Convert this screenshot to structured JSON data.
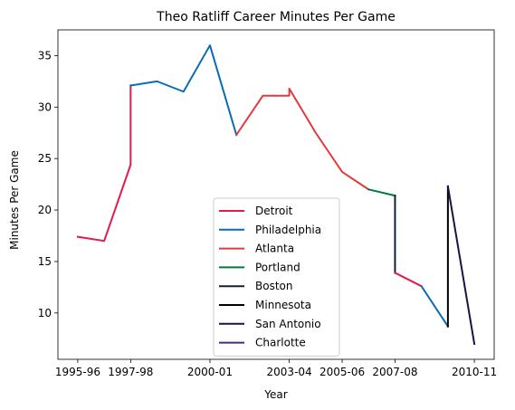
{
  "chart_data": {
    "type": "line",
    "title": "Theo Ratliff Career Minutes Per Game",
    "xlabel": "Year",
    "ylabel": "Minutes Per Game",
    "x_tick_labels": [
      "1995-96",
      "1997-98",
      "2000-01",
      "2003-04",
      "2005-06",
      "2007-08",
      "2010-11"
    ],
    "x_tick_positions": [
      0,
      2,
      5,
      8,
      10,
      12,
      15
    ],
    "xlim": [
      -0.75,
      15.75
    ],
    "ylim": [
      5.5,
      37.5
    ],
    "y_ticks": [
      10,
      15,
      20,
      25,
      30,
      35
    ],
    "grid": false,
    "legend_position": "bottom-center",
    "series": [
      {
        "name": "Detroit",
        "color": "#e31b4b",
        "x": [
          0,
          1,
          2,
          2
        ],
        "y": [
          17.4,
          17.0,
          24.4,
          32.1
        ]
      },
      {
        "name": "Philadelphia",
        "color": "#0a6cb5",
        "x": [
          2,
          3,
          4,
          5,
          6
        ],
        "y": [
          32.1,
          32.5,
          31.5,
          36.0,
          27.3
        ]
      },
      {
        "name": "Atlanta",
        "color": "#e03a3e",
        "x": [
          6,
          7,
          8,
          8,
          9,
          10,
          11
        ],
        "y": [
          27.3,
          31.1,
          31.1,
          31.8,
          27.5,
          23.7,
          22.0
        ]
      },
      {
        "name": "Portland",
        "color": "#007a3d",
        "x": [
          11,
          12
        ],
        "y": [
          22.0,
          21.4
        ]
      },
      {
        "name": "Boston",
        "color": "#0a2238",
        "x": [
          12,
          12
        ],
        "y": [
          21.4,
          13.9
        ]
      },
      {
        "name": "Detroit",
        "color": "#e31b4b",
        "x": [
          12,
          13
        ],
        "y": [
          13.9,
          12.6
        ]
      },
      {
        "name": "Philadelphia",
        "color": "#0a6cb5",
        "x": [
          13,
          14
        ],
        "y": [
          12.6,
          8.7
        ]
      },
      {
        "name": "Minnesota",
        "color": "#000000",
        "x": [
          14,
          14
        ],
        "y": [
          8.7,
          22.3
        ]
      },
      {
        "name": "San Antonio",
        "color": "#1a1346",
        "x": [
          14,
          15
        ],
        "y": [
          22.3,
          7.0
        ]
      }
    ],
    "legend": [
      {
        "label": "Detroit",
        "color": "#e31b4b"
      },
      {
        "label": "Philadelphia",
        "color": "#0a6cb5"
      },
      {
        "label": "Atlanta",
        "color": "#e03a3e"
      },
      {
        "label": "Portland",
        "color": "#007a3d"
      },
      {
        "label": "Boston",
        "color": "#0a2238"
      },
      {
        "label": "Minnesota",
        "color": "#000000"
      },
      {
        "label": "San Antonio",
        "color": "#1a1346"
      },
      {
        "label": "Charlotte",
        "color": "#4b2a87"
      }
    ]
  }
}
